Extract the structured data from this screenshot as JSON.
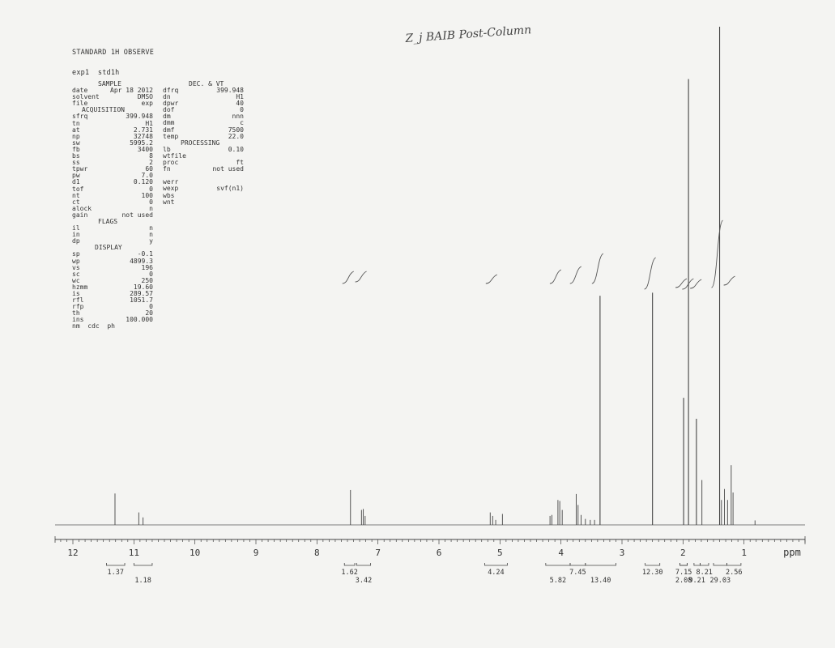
{
  "header": {
    "title": "STANDARD 1H OBSERVE",
    "exp": "exp1  std1h"
  },
  "handwritten_note": "Z_j BAIB Post-Column",
  "params": {
    "sample": {
      "heading": "SAMPLE",
      "rows": [
        {
          "k": "date",
          "v": "Apr 18 2012"
        },
        {
          "k": "solvent",
          "v": "DMSO"
        },
        {
          "k": "file",
          "v": "exp"
        }
      ]
    },
    "acquisition": {
      "heading": "ACQUISITION",
      "rows": [
        {
          "k": "sfrq",
          "v": "399.948"
        },
        {
          "k": "tn",
          "v": "H1"
        },
        {
          "k": "at",
          "v": "2.731"
        },
        {
          "k": "np",
          "v": "32748"
        },
        {
          "k": "sw",
          "v": "5995.2"
        },
        {
          "k": "fb",
          "v": "3400"
        },
        {
          "k": "bs",
          "v": "8"
        },
        {
          "k": "ss",
          "v": "2"
        },
        {
          "k": "tpwr",
          "v": "60"
        },
        {
          "k": "pw",
          "v": "7.0"
        },
        {
          "k": "d1",
          "v": "0.120"
        },
        {
          "k": "tof",
          "v": "0"
        },
        {
          "k": "nt",
          "v": "100"
        },
        {
          "k": "ct",
          "v": "0"
        },
        {
          "k": "alock",
          "v": "n"
        },
        {
          "k": "gain",
          "v": "not used"
        }
      ]
    },
    "flags": {
      "heading": "FLAGS",
      "rows": [
        {
          "k": "il",
          "v": "n"
        },
        {
          "k": "in",
          "v": "n"
        },
        {
          "k": "dp",
          "v": "y"
        }
      ]
    },
    "display": {
      "heading": "DISPLAY",
      "rows": [
        {
          "k": "sp",
          "v": "-0.1"
        },
        {
          "k": "wp",
          "v": "4899.3"
        },
        {
          "k": "vs",
          "v": "196"
        },
        {
          "k": "sc",
          "v": "0"
        },
        {
          "k": "wc",
          "v": "250"
        },
        {
          "k": "hzmm",
          "v": "19.60"
        },
        {
          "k": "is",
          "v": "289.57"
        },
        {
          "k": "rfl",
          "v": "1051.7"
        },
        {
          "k": "rfp",
          "v": "0"
        },
        {
          "k": "th",
          "v": "20"
        },
        {
          "k": "ins",
          "v": "100.000"
        }
      ],
      "footer": "nm  cdc  ph"
    },
    "dec_vt": {
      "heading": "DEC. & VT",
      "rows": [
        {
          "k": "dfrq",
          "v": "399.948"
        },
        {
          "k": "dn",
          "v": "H1"
        },
        {
          "k": "dpwr",
          "v": "40"
        },
        {
          "k": "dof",
          "v": "0"
        },
        {
          "k": "dm",
          "v": "nnn"
        },
        {
          "k": "dmm",
          "v": "c"
        },
        {
          "k": "dmf",
          "v": "7500"
        },
        {
          "k": "temp",
          "v": "22.0"
        }
      ]
    },
    "processing": {
      "heading": "PROCESSING",
      "rows": [
        {
          "k": "lb",
          "v": "0.10"
        },
        {
          "k": "wtfile",
          "v": ""
        },
        {
          "k": "proc",
          "v": "ft"
        },
        {
          "k": "fn",
          "v": "not used"
        }
      ]
    },
    "misc": {
      "rows": [
        {
          "k": "werr",
          "v": ""
        },
        {
          "k": "wexp",
          "v": "svf(n1)"
        },
        {
          "k": "wbs",
          "v": ""
        },
        {
          "k": "wnt",
          "v": ""
        }
      ]
    }
  },
  "chart_data": {
    "type": "line",
    "xlabel": "ppm",
    "xlim": [
      12.2,
      0
    ],
    "x_reversed": true,
    "ticks": [
      12,
      11,
      10,
      9,
      8,
      7,
      6,
      5,
      4,
      3,
      2,
      1
    ],
    "baseline_peaks": [
      {
        "ppm": 11.31,
        "h": 0.063
      },
      {
        "ppm": 10.92,
        "h": 0.025
      },
      {
        "ppm": 10.85,
        "h": 0.015
      },
      {
        "ppm": 7.45,
        "h": 0.07
      },
      {
        "ppm": 7.27,
        "h": 0.03
      },
      {
        "ppm": 7.24,
        "h": 0.032
      },
      {
        "ppm": 7.21,
        "h": 0.018
      },
      {
        "ppm": 5.16,
        "h": 0.025
      },
      {
        "ppm": 5.12,
        "h": 0.018
      },
      {
        "ppm": 5.07,
        "h": 0.01
      },
      {
        "ppm": 4.96,
        "h": 0.022
      },
      {
        "ppm": 4.18,
        "h": 0.018
      },
      {
        "ppm": 4.15,
        "h": 0.02
      },
      {
        "ppm": 4.05,
        "h": 0.05
      },
      {
        "ppm": 4.02,
        "h": 0.048
      },
      {
        "ppm": 3.98,
        "h": 0.03
      },
      {
        "ppm": 3.75,
        "h": 0.062
      },
      {
        "ppm": 3.72,
        "h": 0.04
      },
      {
        "ppm": 3.67,
        "h": 0.02
      },
      {
        "ppm": 3.6,
        "h": 0.012
      },
      {
        "ppm": 3.52,
        "h": 0.01
      },
      {
        "ppm": 3.45,
        "h": 0.01
      },
      {
        "ppm": 3.36,
        "h": 0.46
      },
      {
        "ppm": 2.5,
        "h": 0.466
      },
      {
        "ppm": 1.99,
        "h": 0.255
      },
      {
        "ppm": 1.91,
        "h": 0.895
      },
      {
        "ppm": 1.78,
        "h": 0.213
      },
      {
        "ppm": 1.69,
        "h": 0.09
      },
      {
        "ppm": 1.4,
        "h": 1.0
      },
      {
        "ppm": 1.37,
        "h": 0.05
      },
      {
        "ppm": 1.32,
        "h": 0.072
      },
      {
        "ppm": 1.27,
        "h": 0.05
      },
      {
        "ppm": 1.21,
        "h": 0.12
      },
      {
        "ppm": 1.18,
        "h": 0.065
      },
      {
        "ppm": 0.82,
        "h": 0.009
      }
    ],
    "integrations": [
      {
        "value": "1.37",
        "from": 11.45,
        "to": 11.15,
        "row": 0
      },
      {
        "value": "1.18",
        "from": 11.0,
        "to": 10.7,
        "row": 1
      },
      {
        "value": "1.62",
        "from": 7.55,
        "to": 7.38,
        "row": 0
      },
      {
        "value": "3.42",
        "from": 7.35,
        "to": 7.12,
        "row": 1
      },
      {
        "value": "4.24",
        "from": 5.25,
        "to": 4.88,
        "row": 0
      },
      {
        "value": "5.82",
        "from": 4.25,
        "to": 3.85,
        "row": 1
      },
      {
        "value": "7.45",
        "from": 3.85,
        "to": 3.6,
        "row": 0
      },
      {
        "value": "13.40",
        "from": 3.6,
        "to": 3.1,
        "row": 1
      },
      {
        "value": "12.30",
        "from": 2.62,
        "to": 2.38,
        "row": 0
      },
      {
        "value": "7.15",
        "from": 2.05,
        "to": 1.93,
        "row": 0
      },
      {
        "value": "2.08",
        "from": 2.05,
        "to": 1.93,
        "row": 1
      },
      {
        "value": "9.21",
        "from": 1.82,
        "to": 1.72,
        "row": 1
      },
      {
        "value": "8.21",
        "from": 1.72,
        "to": 1.58,
        "row": 0
      },
      {
        "value": "29.03",
        "from": 1.5,
        "to": 1.28,
        "row": 1
      },
      {
        "value": "2.56",
        "from": 1.28,
        "to": 1.05,
        "row": 0
      }
    ]
  }
}
